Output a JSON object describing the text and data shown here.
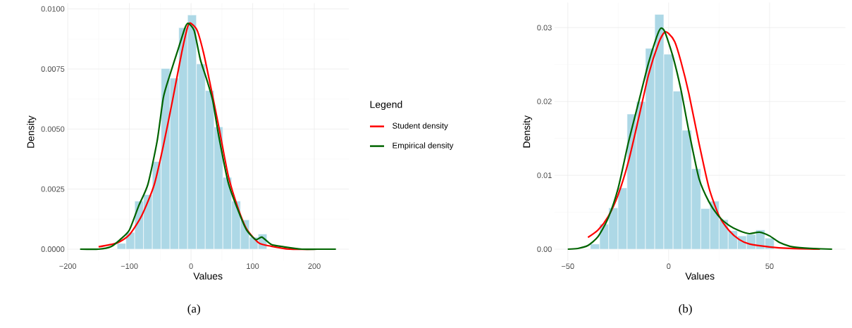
{
  "chart_data": [
    {
      "type": "histogram",
      "xlabel": "Values",
      "ylabel": "Density",
      "legend_title": "Legend",
      "legend": "right",
      "grid": true,
      "bins": [
        -120,
        -105.7,
        -91.4,
        -77.1,
        -62.8,
        -48.5,
        -34.2,
        -19.9,
        -5.6,
        8.7,
        23,
        37.3,
        51.6,
        65.9,
        80.2,
        94.5,
        108.8,
        123.1
      ],
      "values": [
        0.00024,
        0.0007,
        0.002,
        0.00227,
        0.00365,
        0.00752,
        0.00712,
        0.00922,
        0.00975,
        0.00771,
        0.0066,
        0.00509,
        0.00299,
        0.002,
        0.00122,
        0.0005,
        0.00063
      ],
      "color": "#add8e6",
      "series": [
        {
          "type": "line",
          "name": "Student density",
          "color": "#ff0000",
          "x": [
            -150,
            -120,
            -100,
            -80,
            -60,
            -45,
            -30,
            -15,
            -5,
            0,
            10,
            20,
            30,
            45,
            60,
            75,
            90,
            110,
            130,
            160,
            205
          ],
          "values": [
            0.0001,
            0.00026,
            0.0006,
            0.0014,
            0.00266,
            0.0043,
            0.0062,
            0.0082,
            0.0093,
            0.0094,
            0.0091,
            0.0082,
            0.007,
            0.0051,
            0.0031,
            0.0018,
            0.00085,
            0.00026,
            0.00012,
            0,
            0
          ]
        },
        {
          "type": "line",
          "name": "Empirical density",
          "color": "#006400",
          "x": [
            -180,
            -150,
            -130,
            -115,
            -100,
            -85,
            -70,
            -55,
            -45,
            -35,
            -20,
            -10,
            -5,
            5,
            15,
            25,
            35,
            45,
            60,
            75,
            90,
            105,
            115,
            130,
            150,
            180,
            205,
            235
          ],
          "values": [
            0,
            0,
            0.0001,
            0.0004,
            0.0008,
            0.0018,
            0.0027,
            0.0045,
            0.0063,
            0.0072,
            0.0084,
            0.0092,
            0.0094,
            0.0091,
            0.0079,
            0.0071,
            0.0062,
            0.0047,
            0.0028,
            0.0017,
            0.0008,
            0.0004,
            0.0005,
            0.0002,
            0.0001,
            0,
            0,
            0
          ]
        }
      ],
      "xlim": [
        -201,
        256
      ],
      "ylim": [
        -0.00049,
        0.01024
      ],
      "xticks": [
        {
          "value": -200,
          "label": "−200"
        },
        {
          "value": -100,
          "label": "−100"
        },
        0,
        100,
        200
      ],
      "yticks": [
        {
          "value": 0,
          "label": "0.0000"
        },
        {
          "value": 0.0025,
          "label": "0.0025"
        },
        {
          "value": 0.005,
          "label": "0.0050"
        },
        {
          "value": 0.0075,
          "label": "0.0075"
        },
        {
          "value": 0.01,
          "label": "0.0100"
        }
      ],
      "annotations": [
        "(a)"
      ]
    },
    {
      "type": "histogram",
      "xlabel": "Values",
      "ylabel": "Density",
      "grid": true,
      "bins": [
        -38.8,
        -34.2,
        -29.7,
        -25.1,
        -20.6,
        -16.0,
        -11.5,
        -6.9,
        -2.4,
        2.2,
        6.7,
        11.3,
        15.9,
        20.4,
        25.0,
        29.5,
        34.1,
        38.6,
        43.2,
        47.7,
        52.3
      ],
      "values": [
        0.0007,
        0.0034,
        0.0056,
        0.0083,
        0.0183,
        0.02,
        0.0272,
        0.0318,
        0.0264,
        0.0214,
        0.0161,
        0.0109,
        0.0055,
        0.0065,
        0.004,
        0.0025,
        0.0018,
        0.002,
        0.0026,
        0.0015
      ],
      "color": "#add8e6",
      "series": [
        {
          "type": "line",
          "color": "#ff0000",
          "x": [
            -40,
            -35,
            -30,
            -25,
            -20,
            -15,
            -10,
            -5,
            -2,
            0,
            3,
            6,
            10,
            15,
            20,
            25,
            30,
            35,
            40,
            50,
            60,
            75
          ],
          "values": [
            0.0016,
            0.0026,
            0.0044,
            0.0074,
            0.0118,
            0.0176,
            0.0236,
            0.0279,
            0.0294,
            0.0292,
            0.0281,
            0.0255,
            0.0211,
            0.0144,
            0.0083,
            0.0045,
            0.0025,
            0.0013,
            0.0007,
            0.0003,
            0.0001,
            0
          ]
        },
        {
          "type": "line",
          "color": "#006400",
          "x": [
            -50,
            -45,
            -40,
            -35,
            -30,
            -25,
            -20,
            -15,
            -10,
            -6,
            -4,
            -2,
            2,
            6,
            10,
            15,
            20,
            25,
            30,
            35,
            40,
            45,
            50,
            55,
            60,
            65,
            70,
            81
          ],
          "values": [
            0,
            0.0001,
            0.0005,
            0.0017,
            0.0042,
            0.0083,
            0.0144,
            0.0198,
            0.0252,
            0.0287,
            0.0299,
            0.0295,
            0.0262,
            0.0217,
            0.016,
            0.0096,
            0.0064,
            0.0044,
            0.0032,
            0.0025,
            0.0021,
            0.0023,
            0.0018,
            0.0009,
            0.0004,
            0.0002,
            0.0001,
            0
          ]
        }
      ],
      "xlim": [
        -56.6,
        87.6
      ],
      "ylim": [
        -0.0016,
        0.0334
      ],
      "xticks": [
        {
          "value": -50,
          "label": "−50"
        },
        0,
        50
      ],
      "yticks": [
        {
          "value": 0,
          "label": "0.00"
        },
        {
          "value": 0.01,
          "label": "0.01"
        },
        {
          "value": 0.02,
          "label": "0.02"
        },
        {
          "value": 0.03,
          "label": "0.03"
        }
      ],
      "annotations": [
        "(b)"
      ]
    }
  ]
}
